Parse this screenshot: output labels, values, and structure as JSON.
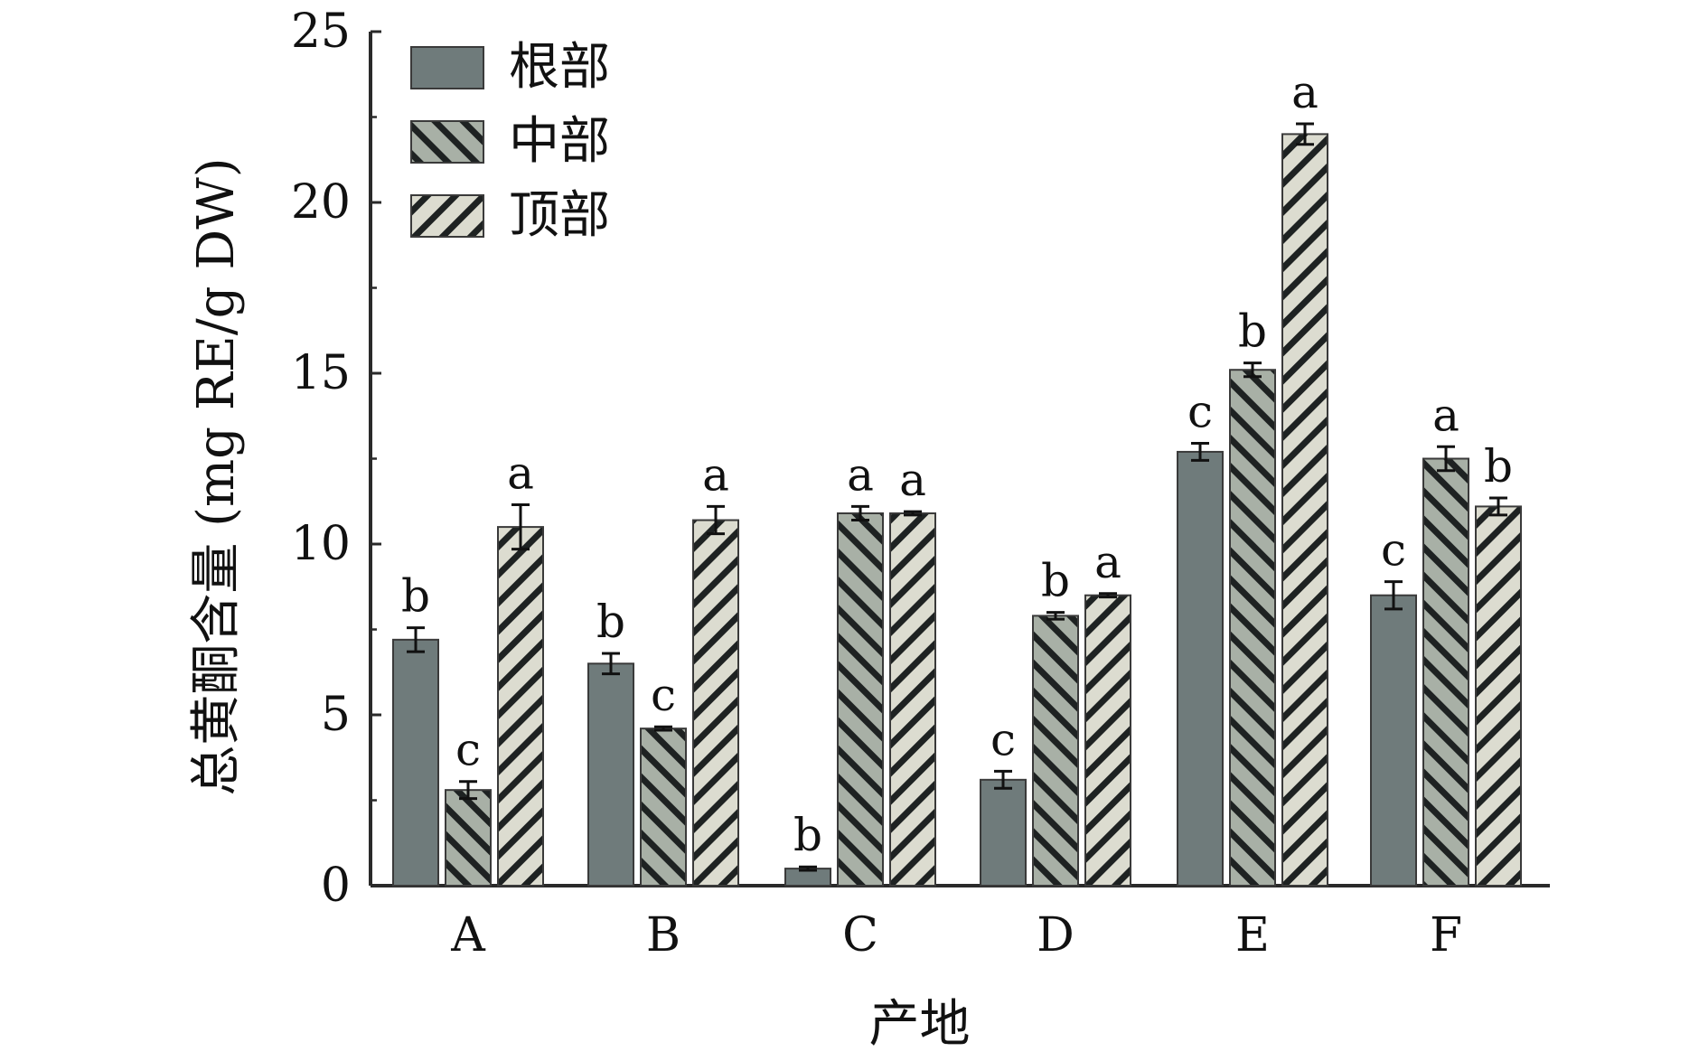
{
  "chart_data": {
    "type": "bar",
    "title": "",
    "xlabel": "产地",
    "ylabel": "总黄酮含量 (mg RE/g DW)",
    "categories": [
      "A",
      "B",
      "C",
      "D",
      "E",
      "F"
    ],
    "ylim": [
      0,
      25
    ],
    "yticks": [
      0,
      5,
      10,
      15,
      20,
      25
    ],
    "grid": false,
    "legend_position": "top-left",
    "series": [
      {
        "name": "根部",
        "color": "#6f7b7b",
        "pattern": "solid",
        "values": [
          7.2,
          6.5,
          0.5,
          3.1,
          12.7,
          8.5
        ],
        "errors": [
          0.35,
          0.3,
          0.05,
          0.25,
          0.25,
          0.4
        ],
        "labels": [
          "b",
          "b",
          "b",
          "c",
          "c",
          "c"
        ]
      },
      {
        "name": "中部",
        "color": "#a8b0a6",
        "pattern": "forward-hatch",
        "values": [
          2.8,
          4.6,
          10.9,
          7.9,
          15.1,
          12.5
        ],
        "errors": [
          0.25,
          0.05,
          0.2,
          0.1,
          0.2,
          0.35
        ],
        "labels": [
          "c",
          "c",
          "a",
          "b",
          "b",
          "a"
        ]
      },
      {
        "name": "顶部",
        "color": "#dcdcd0",
        "pattern": "back-hatch",
        "values": [
          10.5,
          10.7,
          10.9,
          8.5,
          22.0,
          11.1
        ],
        "errors": [
          0.65,
          0.4,
          0.05,
          0.05,
          0.3,
          0.25
        ],
        "labels": [
          "a",
          "a",
          "a",
          "a",
          "a",
          "b"
        ]
      }
    ]
  }
}
